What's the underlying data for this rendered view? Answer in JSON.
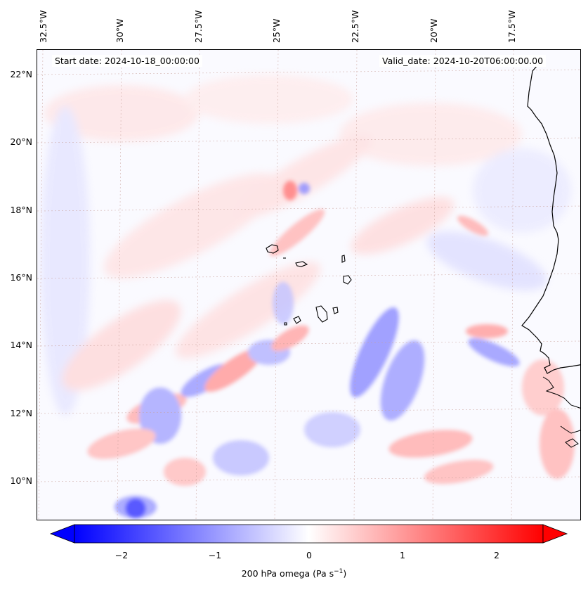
{
  "map": {
    "start_date": "Start date: 2024-10-18_00:00:00",
    "valid_date": "Valid_date: 2024-10-20T06:00:00.00",
    "longitude_labels": [
      "32.5°W",
      "30°W",
      "27.5°W",
      "25°W",
      "22.5°W",
      "20°W",
      "17.5°W"
    ],
    "latitude_labels": [
      "22°N",
      "20°N",
      "18°N",
      "16°N",
      "14°N",
      "12°N",
      "10°N"
    ]
  },
  "colorbar": {
    "label_prefix": "200 hPa omega (Pa s",
    "label_exponent": "−1",
    "label_suffix": ")",
    "ticks": [
      "−2",
      "−1",
      "0",
      "1",
      "2"
    ],
    "range": [
      -2.6,
      2.6
    ],
    "low_color": "#0000ff",
    "mid_color": "#ffffff",
    "high_color": "#ff0000"
  }
}
